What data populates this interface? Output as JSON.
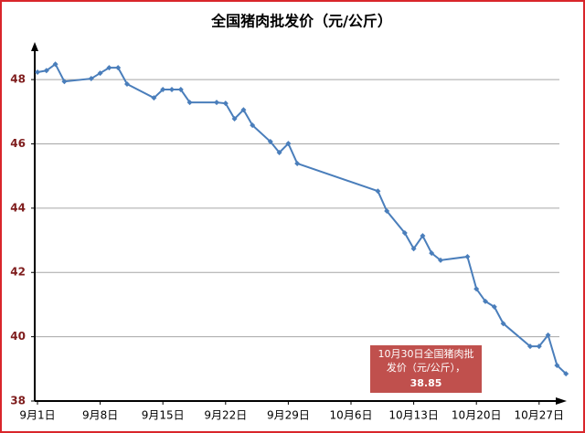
{
  "chart_data": {
    "type": "line",
    "title": "全国猪肉批发价（元/公斤）",
    "x": [
      "9月1日",
      "9月2日",
      "9月3日",
      "9月4日",
      "9月7日",
      "9月8日",
      "9月9日",
      "9月10日",
      "9月11日",
      "9月14日",
      "9月15日",
      "9月16日",
      "9月17日",
      "9月18日",
      "9月21日",
      "9月22日",
      "9月23日",
      "9月24日",
      "9月25日",
      "9月27日",
      "9月28日",
      "9月29日",
      "9月30日",
      "10月9日",
      "10月10日",
      "10月12日",
      "10月13日",
      "10月14日",
      "10月15日",
      "10月16日",
      "10月19日",
      "10月20日",
      "10月21日",
      "10月22日",
      "10月23日",
      "10月26日",
      "10月27日",
      "10月28日",
      "10月29日",
      "10月30日"
    ],
    "values": [
      48.23,
      48.28,
      48.48,
      47.94,
      48.03,
      48.2,
      48.37,
      48.37,
      47.86,
      47.43,
      47.69,
      47.69,
      47.69,
      47.29,
      47.29,
      47.26,
      46.78,
      47.06,
      46.58,
      46.07,
      45.73,
      46.01,
      45.39,
      44.53,
      43.91,
      43.23,
      42.74,
      43.14,
      42.6,
      42.38,
      42.49,
      41.49,
      41.1,
      40.93,
      40.41,
      39.7,
      39.7,
      40.05,
      39.11,
      38.85
    ],
    "color": "#4a7ebb",
    "xticks": [
      "9月1日",
      "9月8日",
      "9月15日",
      "9月22日",
      "9月29日",
      "10月6日",
      "10月13日",
      "10月20日",
      "10月27日"
    ],
    "ylim": [
      38,
      48.6
    ],
    "yticks": [
      38,
      40,
      42,
      44,
      46,
      48
    ],
    "grid": true,
    "annotation": [
      "10月30日全国猪肉批",
      "发价（元/公斤），"
    ]
  }
}
